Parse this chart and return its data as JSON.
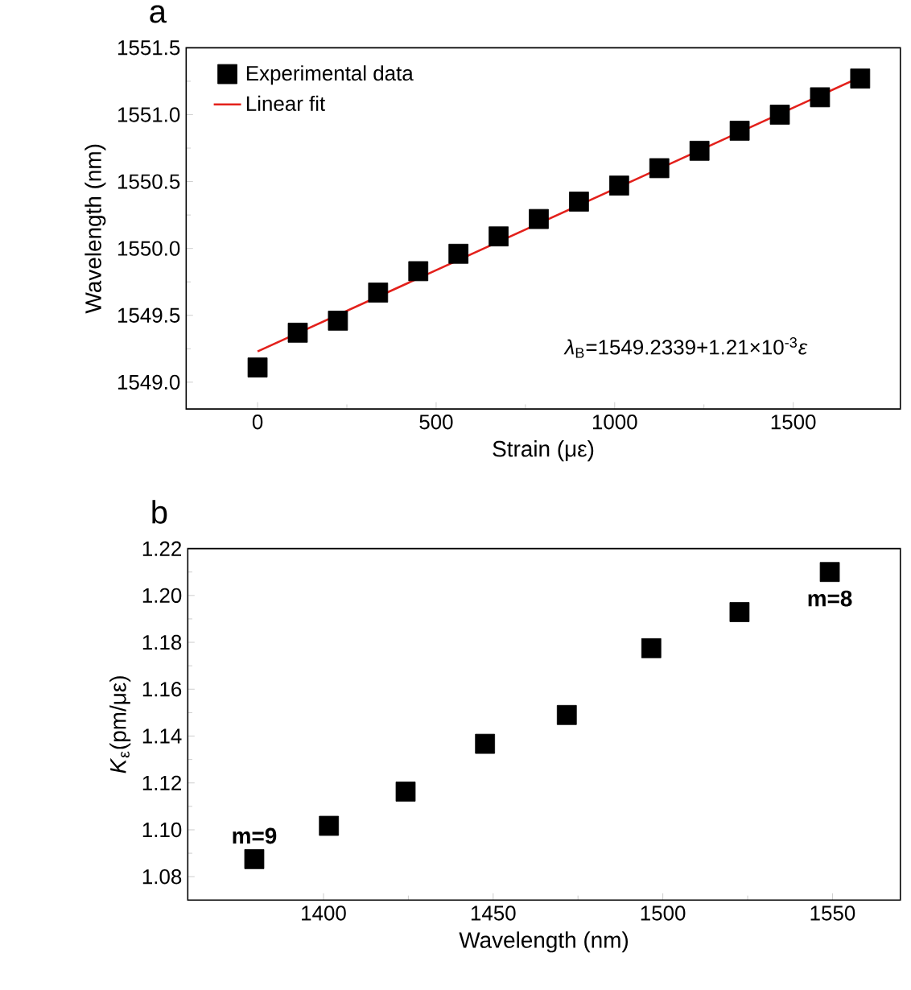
{
  "chart_data": [
    {
      "type": "scatter",
      "title": "a",
      "xlabel": "Strain (με)",
      "ylabel": "Wavelength (nm)",
      "xlim": [
        -200,
        1800
      ],
      "ylim": [
        1548.8,
        1551.5
      ],
      "xticks": [
        0,
        500,
        1000,
        1500
      ],
      "yticks": [
        {
          "value": 1549.0,
          "label": "1549.0"
        },
        {
          "value": 1549.5,
          "label": "1549.5"
        },
        {
          "value": 1550.0,
          "label": "1550.0"
        },
        {
          "value": 1550.5,
          "label": "1550.5"
        },
        {
          "value": 1551.0,
          "label": "1551.0"
        },
        {
          "value": 1551.5,
          "label": "1551.5"
        }
      ],
      "legend": "top left",
      "annotations": [
        "*λ*$_{B}$=1549.2339+1.21×10$^{-3}$*ε*"
      ],
      "series": [
        {
          "name": "Experimental data",
          "type": "scatter",
          "marker": "square",
          "color": "#000000",
          "x": [
            0,
            112.5,
            225,
            337.5,
            450,
            562.5,
            675,
            787.5,
            900,
            1012.5,
            1125,
            1237.5,
            1350,
            1462.5,
            1575,
            1687.5
          ],
          "values": [
            1549.11,
            1549.37,
            1549.46,
            1549.67,
            1549.83,
            1549.96,
            1550.09,
            1550.22,
            1550.35,
            1550.47,
            1550.6,
            1550.73,
            1550.88,
            1551.0,
            1551.13,
            1551.27
          ]
        },
        {
          "name": "Linear fit",
          "type": "line",
          "color": "#e3201b",
          "x": [
            0,
            1687.5
          ],
          "values": [
            1549.23,
            1551.28
          ]
        }
      ]
    },
    {
      "type": "scatter",
      "title": "b",
      "xlabel": "Wavelength (nm)",
      "ylabel": "*K*$_{ε}$(pm/με)",
      "xlim": [
        1360,
        1570
      ],
      "ylim": [
        1.07,
        1.22
      ],
      "xticks": [
        1400,
        1450,
        1500,
        1550
      ],
      "yticks": [
        {
          "value": 1.08,
          "label": "1.08"
        },
        {
          "value": 1.1,
          "label": "1.10"
        },
        {
          "value": 1.12,
          "label": "1.12"
        },
        {
          "value": 1.14,
          "label": "1.14"
        },
        {
          "value": 1.16,
          "label": "1.16"
        },
        {
          "value": 1.18,
          "label": "1.18"
        },
        {
          "value": 1.2,
          "label": "1.20"
        },
        {
          "value": 1.22,
          "label": "1.22"
        }
      ],
      "marker": "square",
      "annotations": [
        {
          "text": "m=9",
          "x": 1379.6,
          "y": 1.0875
        },
        {
          "text": "m=8",
          "x": 1549.2,
          "y": 1.21
        }
      ],
      "series": [
        {
          "color": "#000000",
          "x": [
            1379.6,
            1401.6,
            1424.2,
            1447.6,
            1471.7,
            1496.6,
            1522.6,
            1549.2
          ],
          "values": [
            1.0875,
            1.1017,
            1.1163,
            1.1367,
            1.149,
            1.1775,
            1.1929,
            1.21
          ]
        }
      ]
    }
  ]
}
